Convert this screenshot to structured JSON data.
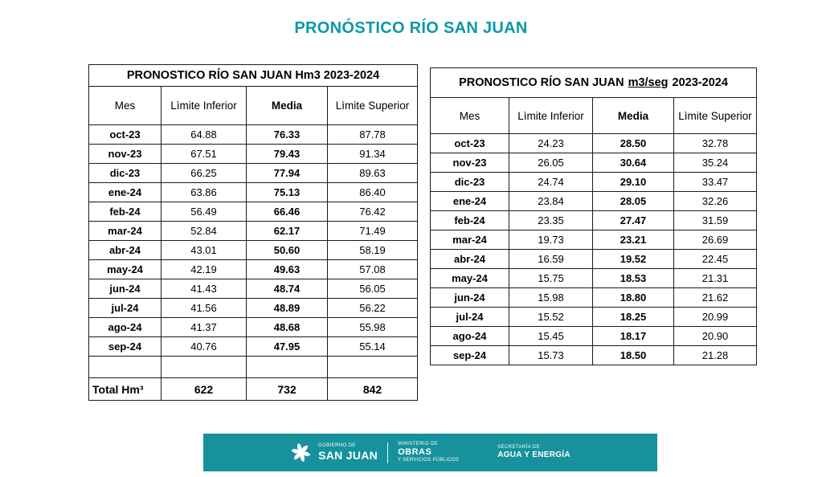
{
  "page": {
    "title": "PRONÓSTICO RÍO SAN JUAN"
  },
  "colors": {
    "title": "#0999A6",
    "banner": "#17919B"
  },
  "tables": [
    {
      "title": "PRONOSTICO RÍO SAN JUAN Hm3  2023-2024",
      "columns": [
        "Mes",
        "Lìmite Inferior",
        "Media",
        "Lìmite Superior"
      ],
      "rows": [
        [
          "oct-23",
          "64.88",
          "76.33",
          "87.78"
        ],
        [
          "nov-23",
          "67.51",
          "79.43",
          "91.34"
        ],
        [
          "dic-23",
          "66.25",
          "77.94",
          "89.63"
        ],
        [
          "ene-24",
          "63.86",
          "75.13",
          "86.40"
        ],
        [
          "feb-24",
          "56.49",
          "66.46",
          "76.42"
        ],
        [
          "mar-24",
          "52.84",
          "62.17",
          "71.49"
        ],
        [
          "abr-24",
          "43.01",
          "50.60",
          "58.19"
        ],
        [
          "may-24",
          "42.19",
          "49.63",
          "57.08"
        ],
        [
          "jun-24",
          "41.43",
          "48.74",
          "56.05"
        ],
        [
          "jul-24",
          "41.56",
          "48.89",
          "56.22"
        ],
        [
          "ago-24",
          "41.37",
          "48.68",
          "55.98"
        ],
        [
          "sep-24",
          "40.76",
          "47.95",
          "55.14"
        ]
      ],
      "total_row": [
        "Total Hm³",
        "622",
        "732",
        "842"
      ]
    },
    {
      "title_prefix": "PRONOSTICO RÍO SAN JUAN",
      "title_unit": "m3/seg",
      "title_suffix": "2023-2024",
      "columns": [
        "Mes",
        "Lìmite Inferior",
        "Media",
        "Lìmite Superior"
      ],
      "rows": [
        [
          "oct-23",
          "24.23",
          "28.50",
          "32.78"
        ],
        [
          "nov-23",
          "26.05",
          "30.64",
          "35.24"
        ],
        [
          "dic-23",
          "24.74",
          "29.10",
          "33.47"
        ],
        [
          "ene-24",
          "23.84",
          "28.05",
          "32.26"
        ],
        [
          "feb-24",
          "23.35",
          "27.47",
          "31.59"
        ],
        [
          "mar-24",
          "19.73",
          "23.21",
          "26.69"
        ],
        [
          "abr-24",
          "16.59",
          "19.52",
          "22.45"
        ],
        [
          "may-24",
          "15.75",
          "18.53",
          "21.31"
        ],
        [
          "jun-24",
          "15.98",
          "18.80",
          "21.62"
        ],
        [
          "jul-24",
          "15.52",
          "18.25",
          "20.99"
        ],
        [
          "ago-24",
          "15.45",
          "18.17",
          "20.90"
        ],
        [
          "sep-24",
          "15.73",
          "18.50",
          "21.28"
        ]
      ]
    }
  ],
  "footer": {
    "gobierno_label": "GOBIERNO DE",
    "gobierno_name": "SAN JUAN",
    "ministerio_label": "MINISTERIO DE",
    "ministerio_name": "OBRAS",
    "ministerio_sub": "Y SERVICIOS PÚBLICOS",
    "secretaria_label": "SECRETARÍA DE",
    "secretaria_name": "AGUA Y ENERGÍA"
  }
}
